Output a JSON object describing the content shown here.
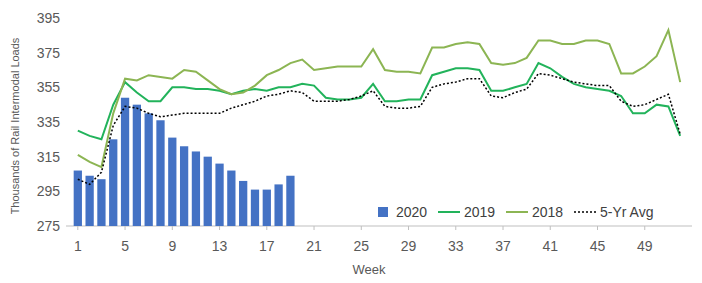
{
  "chart_data": {
    "type": "line",
    "x_label": "Week",
    "y_label": "Thousands of Rail Intermodal Loads",
    "x": [
      1,
      2,
      3,
      4,
      5,
      6,
      7,
      8,
      9,
      10,
      11,
      12,
      13,
      14,
      15,
      16,
      17,
      18,
      19,
      20,
      21,
      22,
      23,
      24,
      25,
      26,
      27,
      28,
      29,
      30,
      31,
      32,
      33,
      34,
      35,
      36,
      37,
      38,
      39,
      40,
      41,
      42,
      43,
      44,
      45,
      46,
      47,
      48,
      49,
      50,
      51,
      52
    ],
    "xlim": [
      0,
      53
    ],
    "xticks": [
      1,
      5,
      9,
      13,
      17,
      21,
      25,
      29,
      33,
      37,
      41,
      45,
      49
    ],
    "ylim": [
      275,
      395
    ],
    "yticks": [
      275,
      295,
      315,
      335,
      355,
      375,
      395
    ],
    "grid": false,
    "legend": "lower right",
    "series": [
      {
        "name": "2020",
        "type": "bar",
        "color": "#4472c4",
        "values": [
          307,
          304,
          302,
          325,
          349,
          345,
          340,
          336,
          326,
          321,
          318,
          315,
          311,
          307,
          301,
          296,
          296,
          299,
          304,
          null,
          null,
          null,
          null,
          null,
          null,
          null,
          null,
          null,
          null,
          null,
          null,
          null,
          null,
          null,
          null,
          null,
          null,
          null,
          null,
          null,
          null,
          null,
          null,
          null,
          null,
          null,
          null,
          null,
          null,
          null,
          null,
          null
        ]
      },
      {
        "name": "2019",
        "type": "line",
        "color": "#22b35b",
        "line_style": "solid",
        "values": [
          330,
          327,
          325,
          345,
          358,
          352,
          347,
          347,
          355,
          355,
          354,
          354,
          353,
          351,
          353,
          354,
          353,
          355,
          355,
          357,
          356,
          349,
          348,
          348,
          349,
          357,
          347,
          347,
          348,
          348,
          362,
          364,
          366,
          366,
          365,
          353,
          353,
          355,
          357,
          369,
          366,
          361,
          357,
          355,
          354,
          353,
          350,
          340,
          340,
          345,
          344,
          327
        ]
      },
      {
        "name": "2018",
        "type": "line",
        "color": "#8cb553",
        "line_style": "solid",
        "values": [
          316,
          312,
          309,
          340,
          360,
          359,
          362,
          361,
          360,
          365,
          364,
          359,
          354,
          351,
          352,
          356,
          362,
          365,
          369,
          371,
          365,
          366,
          367,
          367,
          367,
          377,
          365,
          364,
          364,
          363,
          378,
          378,
          380,
          381,
          380,
          369,
          368,
          369,
          372,
          382,
          382,
          380,
          380,
          382,
          382,
          380,
          363,
          363,
          367,
          373,
          388,
          358
        ]
      },
      {
        "name": "5-Yr Avg",
        "type": "line",
        "color": "#000000",
        "line_style": "dotted",
        "values": [
          302,
          299,
          306,
          333,
          344,
          343,
          340,
          338,
          339,
          340,
          340,
          340,
          340,
          343,
          345,
          347,
          350,
          351,
          353,
          352,
          347,
          347,
          347,
          348,
          350,
          353,
          344,
          343,
          343,
          344,
          355,
          357,
          358,
          360,
          360,
          350,
          349,
          352,
          354,
          363,
          362,
          360,
          358,
          357,
          356,
          356,
          347,
          344,
          345,
          348,
          351,
          328
        ]
      }
    ]
  }
}
